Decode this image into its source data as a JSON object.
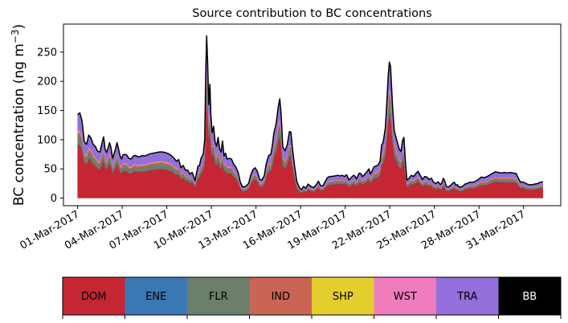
{
  "chart_data": {
    "type": "area",
    "title": "Source contribution to BC concentrations",
    "ylabel_main": "BC concentration (ng m",
    "ylabel_sup": "−3",
    "ylabel_close": ")",
    "xlabel": "",
    "x_start_day": 1,
    "x_end_day": 32.3,
    "xlim": [
      0.05,
      33.5
    ],
    "ylim": [
      -13,
      298
    ],
    "yticks": [
      0,
      50,
      100,
      150,
      200,
      250
    ],
    "xtick_days": [
      1,
      4,
      7,
      10,
      13,
      16,
      19,
      22,
      25,
      28,
      31
    ],
    "xtick_labels": [
      "01-Mar-2017",
      "04-Mar-2017",
      "07-Mar-2017",
      "10-Mar-2017",
      "13-Mar-2017",
      "16-Mar-2017",
      "19-Mar-2017",
      "22-Mar-2017",
      "25-Mar-2017",
      "28-Mar-2017",
      "31-Mar-2017"
    ],
    "total_series": {
      "name": "Total BC",
      "color": "#000000",
      "points": [
        [
          1.0,
          143
        ],
        [
          1.15,
          146
        ],
        [
          1.3,
          132
        ],
        [
          1.45,
          97
        ],
        [
          1.6,
          92
        ],
        [
          1.75,
          108
        ],
        [
          1.9,
          103
        ],
        [
          2.05,
          92
        ],
        [
          2.2,
          88
        ],
        [
          2.35,
          80
        ],
        [
          2.5,
          79
        ],
        [
          2.65,
          95
        ],
        [
          2.75,
          105
        ],
        [
          2.85,
          84
        ],
        [
          2.95,
          78
        ],
        [
          3.05,
          86
        ],
        [
          3.15,
          95
        ],
        [
          3.25,
          86
        ],
        [
          3.35,
          68
        ],
        [
          3.45,
          76
        ],
        [
          3.55,
          84
        ],
        [
          3.65,
          95
        ],
        [
          3.75,
          85
        ],
        [
          3.85,
          73
        ],
        [
          3.95,
          67
        ],
        [
          4.05,
          74
        ],
        [
          4.15,
          75
        ],
        [
          4.3,
          74
        ],
        [
          4.45,
          68
        ],
        [
          4.6,
          67
        ],
        [
          4.75,
          72
        ],
        [
          4.9,
          73
        ],
        [
          5.05,
          71
        ],
        [
          5.2,
          71
        ],
        [
          5.35,
          73
        ],
        [
          5.5,
          72
        ],
        [
          5.7,
          74
        ],
        [
          5.9,
          76
        ],
        [
          6.1,
          77
        ],
        [
          6.3,
          78
        ],
        [
          6.5,
          79
        ],
        [
          6.7,
          79
        ],
        [
          6.9,
          78
        ],
        [
          7.1,
          76
        ],
        [
          7.3,
          73
        ],
        [
          7.5,
          68
        ],
        [
          7.65,
          63
        ],
        [
          7.8,
          66
        ],
        [
          7.95,
          52
        ],
        [
          8.1,
          56
        ],
        [
          8.25,
          48
        ],
        [
          8.4,
          48
        ],
        [
          8.55,
          41
        ],
        [
          8.7,
          44
        ],
        [
          8.8,
          38
        ],
        [
          8.9,
          30
        ],
        [
          9.0,
          43
        ],
        [
          9.1,
          55
        ],
        [
          9.2,
          56
        ],
        [
          9.3,
          68
        ],
        [
          9.45,
          75
        ],
        [
          9.55,
          100
        ],
        [
          9.62,
          215
        ],
        [
          9.68,
          278
        ],
        [
          9.75,
          230
        ],
        [
          9.82,
          160
        ],
        [
          9.9,
          195
        ],
        [
          9.97,
          140
        ],
        [
          10.05,
          112
        ],
        [
          10.15,
          123
        ],
        [
          10.25,
          96
        ],
        [
          10.35,
          89
        ],
        [
          10.45,
          104
        ],
        [
          10.55,
          85
        ],
        [
          10.65,
          79
        ],
        [
          10.75,
          98
        ],
        [
          10.85,
          72
        ],
        [
          10.95,
          77
        ],
        [
          11.05,
          67
        ],
        [
          11.2,
          68
        ],
        [
          11.35,
          67
        ],
        [
          11.5,
          58
        ],
        [
          11.65,
          53
        ],
        [
          11.8,
          44
        ],
        [
          11.95,
          27
        ],
        [
          12.1,
          19
        ],
        [
          12.3,
          20
        ],
        [
          12.5,
          25
        ],
        [
          12.65,
          40
        ],
        [
          12.8,
          49
        ],
        [
          12.95,
          52
        ],
        [
          13.1,
          45
        ],
        [
          13.25,
          32
        ],
        [
          13.4,
          31
        ],
        [
          13.55,
          38
        ],
        [
          13.7,
          60
        ],
        [
          13.85,
          73
        ],
        [
          14.0,
          75
        ],
        [
          14.1,
          90
        ],
        [
          14.2,
          111
        ],
        [
          14.35,
          127
        ],
        [
          14.5,
          157
        ],
        [
          14.6,
          170
        ],
        [
          14.7,
          141
        ],
        [
          14.8,
          88
        ],
        [
          14.95,
          81
        ],
        [
          15.1,
          91
        ],
        [
          15.25,
          114
        ],
        [
          15.35,
          113
        ],
        [
          15.45,
          86
        ],
        [
          15.6,
          54
        ],
        [
          15.75,
          28
        ],
        [
          15.9,
          19
        ],
        [
          16.05,
          14
        ],
        [
          16.2,
          20
        ],
        [
          16.35,
          17
        ],
        [
          16.5,
          24
        ],
        [
          16.7,
          20
        ],
        [
          16.9,
          18
        ],
        [
          17.05,
          23
        ],
        [
          17.2,
          29
        ],
        [
          17.35,
          21
        ],
        [
          17.5,
          21
        ],
        [
          17.65,
          28
        ],
        [
          17.8,
          35
        ],
        [
          17.95,
          37
        ],
        [
          18.1,
          37
        ],
        [
          18.3,
          38
        ],
        [
          18.5,
          39
        ],
        [
          18.65,
          38
        ],
        [
          18.8,
          39
        ],
        [
          18.95,
          37
        ],
        [
          19.1,
          40
        ],
        [
          19.25,
          31
        ],
        [
          19.4,
          35
        ],
        [
          19.55,
          39
        ],
        [
          19.65,
          38
        ],
        [
          19.75,
          33
        ],
        [
          19.85,
          38
        ],
        [
          19.95,
          43
        ],
        [
          20.05,
          42
        ],
        [
          20.15,
          37
        ],
        [
          20.3,
          40
        ],
        [
          20.45,
          45
        ],
        [
          20.6,
          50
        ],
        [
          20.7,
          41
        ],
        [
          20.85,
          49
        ],
        [
          20.95,
          54
        ],
        [
          21.1,
          55
        ],
        [
          21.25,
          58
        ],
        [
          21.35,
          64
        ],
        [
          21.45,
          91
        ],
        [
          21.55,
          95
        ],
        [
          21.7,
          120
        ],
        [
          21.8,
          164
        ],
        [
          21.9,
          212
        ],
        [
          21.97,
          233
        ],
        [
          22.05,
          226
        ],
        [
          22.12,
          190
        ],
        [
          22.2,
          151
        ],
        [
          22.3,
          115
        ],
        [
          22.45,
          101
        ],
        [
          22.55,
          92
        ],
        [
          22.65,
          83
        ],
        [
          22.75,
          80
        ],
        [
          22.85,
          98
        ],
        [
          22.95,
          104
        ],
        [
          23.05,
          63
        ],
        [
          23.15,
          31
        ],
        [
          23.3,
          34
        ],
        [
          23.45,
          39
        ],
        [
          23.6,
          37
        ],
        [
          23.75,
          42
        ],
        [
          23.9,
          46
        ],
        [
          24.05,
          39
        ],
        [
          24.2,
          32
        ],
        [
          24.35,
          37
        ],
        [
          24.5,
          36
        ],
        [
          24.65,
          32
        ],
        [
          24.8,
          34
        ],
        [
          24.95,
          27
        ],
        [
          25.1,
          25
        ],
        [
          25.25,
          28
        ],
        [
          25.4,
          23
        ],
        [
          25.5,
          26
        ],
        [
          25.6,
          34
        ],
        [
          25.7,
          29
        ],
        [
          25.8,
          20
        ],
        [
          25.95,
          19
        ],
        [
          26.1,
          22
        ],
        [
          26.25,
          26
        ],
        [
          26.35,
          27
        ],
        [
          26.45,
          22
        ],
        [
          26.55,
          23
        ],
        [
          26.65,
          19
        ],
        [
          26.8,
          19
        ],
        [
          26.95,
          21
        ],
        [
          27.05,
          24
        ],
        [
          27.2,
          25
        ],
        [
          27.35,
          27
        ],
        [
          27.5,
          27
        ],
        [
          27.7,
          28
        ],
        [
          27.9,
          31
        ],
        [
          28.05,
          34
        ],
        [
          28.15,
          36
        ],
        [
          28.35,
          35
        ],
        [
          28.55,
          37
        ],
        [
          28.75,
          40
        ],
        [
          28.95,
          43
        ],
        [
          29.1,
          45
        ],
        [
          29.3,
          44
        ],
        [
          29.5,
          43
        ],
        [
          29.7,
          44
        ],
        [
          29.9,
          43
        ],
        [
          30.1,
          44
        ],
        [
          30.3,
          43
        ],
        [
          30.5,
          42
        ],
        [
          30.65,
          34
        ],
        [
          30.8,
          27
        ],
        [
          30.95,
          28
        ],
        [
          31.15,
          25
        ],
        [
          31.35,
          23
        ],
        [
          31.55,
          23
        ],
        [
          31.75,
          24
        ],
        [
          31.95,
          25
        ],
        [
          32.1,
          27
        ],
        [
          32.3,
          28
        ]
      ]
    },
    "stack_series": [
      {
        "name": "DOM",
        "color": "#c42733",
        "fraction": 0.63
      },
      {
        "name": "ENE",
        "color": "#3a77b5",
        "fraction": 0.01
      },
      {
        "name": "FLR",
        "color": "#6b7f6a",
        "fraction": 0.1
      },
      {
        "name": "IND",
        "color": "#c96554",
        "fraction": 0.04
      },
      {
        "name": "SHP",
        "color": "#e4ce2e",
        "fraction": 0.01
      },
      {
        "name": "WST",
        "color": "#f07cbd",
        "fraction": 0.01
      },
      {
        "name": "TRA",
        "color": "#9370db",
        "fraction": 0.2
      }
    ],
    "legend": [
      {
        "name": "DOM",
        "color": "#c42733",
        "text_color": "#000000"
      },
      {
        "name": "ENE",
        "color": "#3a77b5",
        "text_color": "#000000"
      },
      {
        "name": "FLR",
        "color": "#6b7f6a",
        "text_color": "#000000"
      },
      {
        "name": "IND",
        "color": "#c96554",
        "text_color": "#000000"
      },
      {
        "name": "SHP",
        "color": "#e4ce2e",
        "text_color": "#000000"
      },
      {
        "name": "WST",
        "color": "#f07cbd",
        "text_color": "#000000"
      },
      {
        "name": "TRA",
        "color": "#9370db",
        "text_color": "#000000"
      },
      {
        "name": "BB",
        "color": "#000000",
        "text_color": "#ffffff"
      }
    ],
    "legend_placement": "bottom"
  }
}
